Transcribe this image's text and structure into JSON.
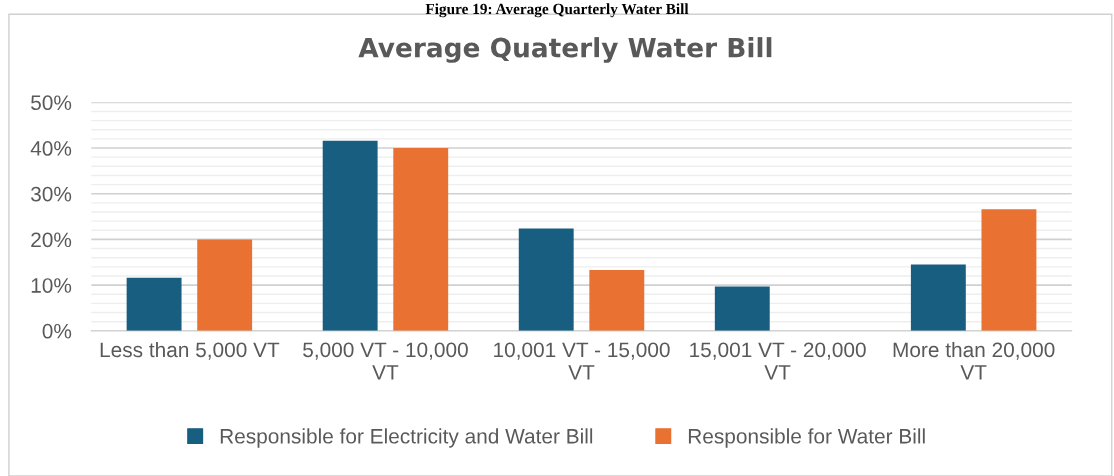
{
  "chart_data": {
    "type": "bar",
    "title": "Average Quaterly Water Bill",
    "annotations": [
      "Figure 19: Average Quarterly Water Bill"
    ],
    "categories": [
      "Less than 5,000 VT",
      "5,000 VT - 10,000 VT",
      "10,001 VT - 15,000 VT",
      "15,001 VT - 20,000 VT",
      "More than 20,000 VT"
    ],
    "series": [
      {
        "name": "Responsible for Electricity and Water Bill",
        "color": "#175e81",
        "values": [
          11.6,
          41.6,
          22.4,
          9.7,
          14.5
        ]
      },
      {
        "name": "Responsible for Water Bill",
        "color": "#e97132",
        "values": [
          20,
          40,
          13.3,
          0,
          26.6
        ]
      }
    ],
    "ylim": [
      0,
      50
    ],
    "yticks": [
      {
        "value": 0,
        "label": "0%"
      },
      {
        "value": 2,
        "label": null
      },
      {
        "value": 4,
        "label": null
      },
      {
        "value": 6,
        "label": null
      },
      {
        "value": 8,
        "label": null
      },
      {
        "value": 10,
        "label": "10%"
      },
      {
        "value": 12,
        "label": null
      },
      {
        "value": 14,
        "label": null
      },
      {
        "value": 16,
        "label": null
      },
      {
        "value": 18,
        "label": null
      },
      {
        "value": 20,
        "label": "20%"
      },
      {
        "value": 22,
        "label": null
      },
      {
        "value": 24,
        "label": null
      },
      {
        "value": 26,
        "label": null
      },
      {
        "value": 28,
        "label": null
      },
      {
        "value": 30,
        "label": "30%"
      },
      {
        "value": 32,
        "label": null
      },
      {
        "value": 34,
        "label": null
      },
      {
        "value": 36,
        "label": null
      },
      {
        "value": 38,
        "label": null
      },
      {
        "value": 40,
        "label": "40%"
      },
      {
        "value": 42,
        "label": null
      },
      {
        "value": 44,
        "label": null
      },
      {
        "value": 46,
        "label": null
      },
      {
        "value": 48,
        "label": null
      },
      {
        "value": 50,
        "label": "50%"
      }
    ],
    "grid": "y",
    "legend": "bottom"
  }
}
